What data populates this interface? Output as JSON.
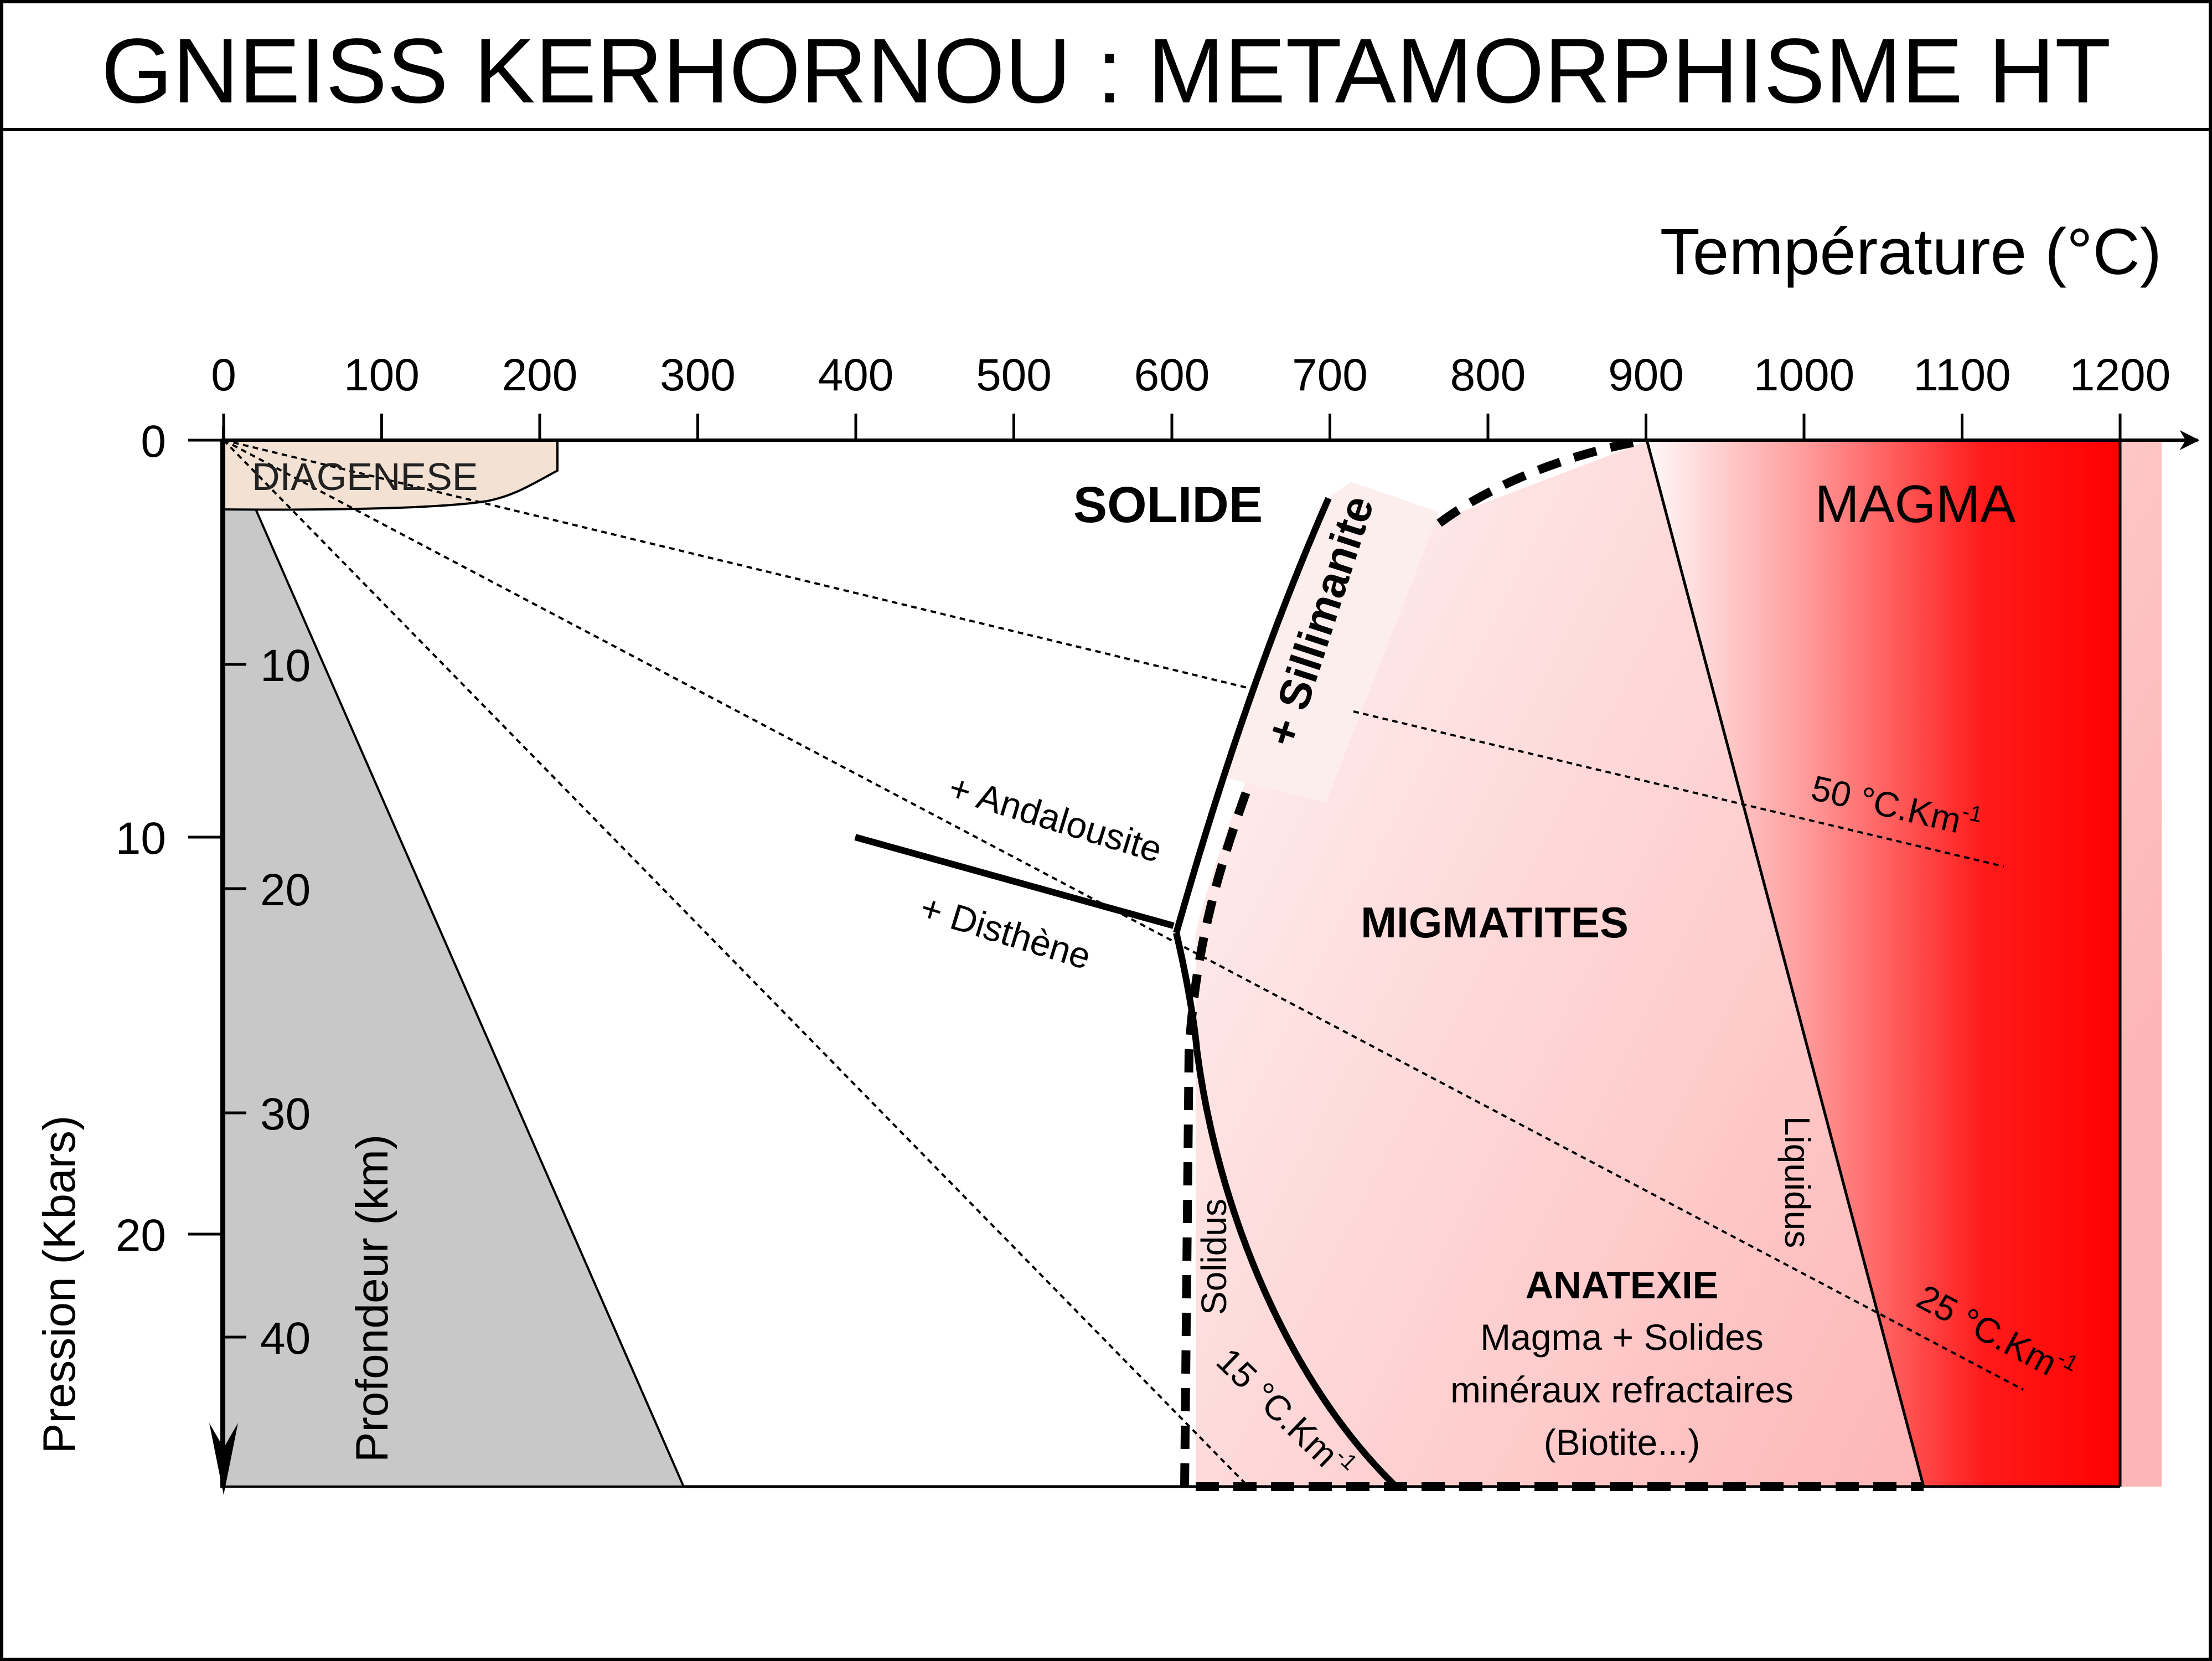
{
  "title": "GNEISS KERHORNOU : METAMORPHISME HT",
  "axes": {
    "temperature_label": "Température (°C)",
    "temperature_ticks": [
      "0",
      "100",
      "200",
      "300",
      "400",
      "500",
      "600",
      "700",
      "800",
      "900",
      "1000",
      "1100",
      "1200"
    ],
    "pressure_label": "Pression (Kbars)",
    "pressure_ticks": [
      "0",
      "10",
      "20"
    ],
    "depth_label": "Profondeur (km)",
    "depth_ticks": [
      "10",
      "20",
      "30",
      "40"
    ]
  },
  "regions": {
    "diagenese": "DIAGENESE",
    "solide": "SOLIDE",
    "magma": "MAGMA",
    "migmatites": "MIGMATITES",
    "anatexie_title": "ANATEXIE",
    "anatexie_line1": "Magma + Solides",
    "anatexie_line2": "minéraux refractaires",
    "anatexie_line3": "(Biotite...)"
  },
  "curve_labels": {
    "sillimanite": "+ Sillimanite",
    "andalousite": "+ Andalousite",
    "disthene": "+ Disthène",
    "solidus": "Solidus",
    "liquidus": "Liquidus"
  },
  "gradients": {
    "g50": {
      "base": "50 °C.Km",
      "sup": "-1"
    },
    "g25": {
      "base": "25 °C.Km",
      "sup": "-1"
    },
    "g15": {
      "base": "15 °C.Km",
      "sup": "-1"
    }
  },
  "colors": {
    "crust_fill": "#c8c8c8",
    "diagenese_fill": "#f3e1d3",
    "magma_red": "#ff0000",
    "melt_pink": "#fbd0d0"
  }
}
